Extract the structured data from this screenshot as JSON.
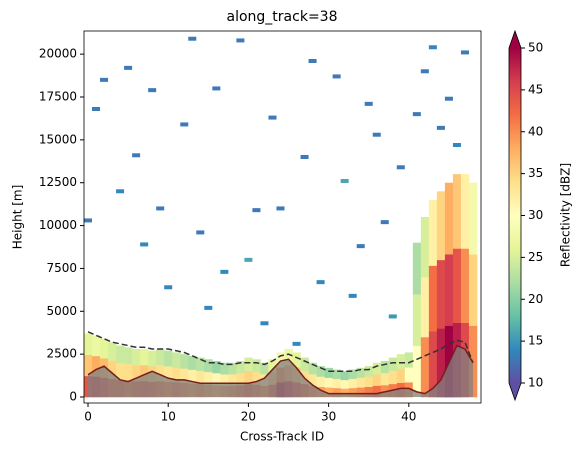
{
  "chart_data": {
    "type": "heatmap",
    "title": "along_track=38",
    "x_label": "Cross-Track ID",
    "y_label": "Height [m]",
    "colorbar_label": "Reflectivity [dBZ]",
    "xlim": [
      -0.5,
      49
    ],
    "ylim": [
      -350,
      21350
    ],
    "xticks": [
      0,
      10,
      20,
      30,
      40
    ],
    "yticks": [
      0,
      2500,
      5000,
      7500,
      10000,
      12500,
      15000,
      17500,
      20000
    ],
    "clim": [
      10,
      50
    ],
    "cticks": [
      10,
      15,
      20,
      25,
      30,
      35,
      40,
      45,
      50
    ],
    "colormap": [
      "#5e4fa2",
      "#3288bd",
      "#66c2a5",
      "#abdda4",
      "#e6f598",
      "#ffffbf",
      "#fee08b",
      "#fdae61",
      "#f46d43",
      "#d53e4f",
      "#9e0142"
    ],
    "x": [
      0,
      1,
      2,
      3,
      4,
      5,
      6,
      7,
      8,
      9,
      10,
      11,
      12,
      13,
      14,
      15,
      16,
      17,
      18,
      19,
      20,
      21,
      22,
      23,
      24,
      25,
      26,
      27,
      28,
      29,
      30,
      31,
      32,
      33,
      34,
      35,
      36,
      37,
      38,
      39,
      40,
      41,
      42,
      43,
      44,
      45,
      46,
      47,
      48
    ],
    "column_tops": [
      3700,
      3600,
      3400,
      3200,
      3000,
      2900,
      2800,
      2800,
      2700,
      2800,
      2700,
      2600,
      2500,
      2400,
      2300,
      2200,
      2100,
      2000,
      2000,
      2100,
      2300,
      2200,
      2000,
      2200,
      2600,
      2800,
      2600,
      2300,
      2000,
      1800,
      1700,
      1600,
      1500,
      1600,
      1700,
      1800,
      2000,
      2100,
      2300,
      2500,
      2600,
      9000,
      10500,
      11500,
      12000,
      12500,
      13000,
      13000,
      12500
    ],
    "column_values": [
      [
        44,
        36,
        26
      ],
      [
        45,
        38,
        27
      ],
      [
        44,
        37,
        26
      ],
      [
        42,
        35,
        25
      ],
      [
        42,
        34,
        24
      ],
      [
        41,
        34,
        24
      ],
      [
        42,
        35,
        25
      ],
      [
        43,
        36,
        26
      ],
      [
        42,
        35,
        25
      ],
      [
        41,
        34,
        24
      ],
      [
        40,
        33,
        23
      ],
      [
        41,
        34,
        24
      ],
      [
        40,
        33,
        23
      ],
      [
        39,
        32,
        22
      ],
      [
        40,
        33,
        23
      ],
      [
        39,
        32,
        22
      ],
      [
        38,
        31,
        21
      ],
      [
        39,
        32,
        22
      ],
      [
        40,
        33,
        23
      ],
      [
        41,
        34,
        24
      ],
      [
        42,
        35,
        25
      ],
      [
        41,
        34,
        24
      ],
      [
        40,
        33,
        23
      ],
      [
        43,
        36,
        26
      ],
      [
        48,
        40,
        28
      ],
      [
        46,
        38,
        27
      ],
      [
        44,
        36,
        26
      ],
      [
        42,
        34,
        24
      ],
      [
        40,
        33,
        23
      ],
      [
        39,
        32,
        22
      ],
      [
        38,
        31,
        21
      ],
      [
        39,
        32,
        22
      ],
      [
        38,
        31,
        21
      ],
      [
        39,
        32,
        22
      ],
      [
        40,
        33,
        23
      ],
      [
        41,
        34,
        24
      ],
      [
        42,
        35,
        25
      ],
      [
        40,
        33,
        23
      ],
      [
        41,
        34,
        24
      ],
      [
        42,
        35,
        25
      ],
      [
        40,
        30,
        24
      ],
      [
        30,
        25,
        22
      ],
      [
        40,
        32,
        25
      ],
      [
        45,
        42,
        32
      ],
      [
        48,
        45,
        35
      ],
      [
        50,
        46,
        38
      ],
      [
        48,
        44,
        36
      ],
      [
        45,
        40,
        32
      ],
      [
        40,
        35,
        28
      ]
    ],
    "speckles": [
      [
        0,
        10300,
        13
      ],
      [
        1,
        16800,
        13
      ],
      [
        2,
        18500,
        13
      ],
      [
        4,
        12000,
        14
      ],
      [
        5,
        19200,
        13
      ],
      [
        6,
        14100,
        13
      ],
      [
        7,
        8900,
        14
      ],
      [
        8,
        17900,
        13
      ],
      [
        9,
        11000,
        13
      ],
      [
        10,
        6400,
        14
      ],
      [
        12,
        15900,
        13
      ],
      [
        13,
        20900,
        13
      ],
      [
        14,
        9600,
        13
      ],
      [
        15,
        5200,
        14
      ],
      [
        16,
        18000,
        13
      ],
      [
        17,
        7300,
        14
      ],
      [
        19,
        20800,
        13
      ],
      [
        20,
        8000,
        16
      ],
      [
        21,
        10900,
        13
      ],
      [
        22,
        4300,
        14
      ],
      [
        23,
        16300,
        13
      ],
      [
        24,
        11000,
        13
      ],
      [
        26,
        3100,
        14
      ],
      [
        27,
        14000,
        13
      ],
      [
        28,
        19600,
        13
      ],
      [
        29,
        6700,
        14
      ],
      [
        31,
        18700,
        13
      ],
      [
        32,
        12600,
        16
      ],
      [
        33,
        5900,
        14
      ],
      [
        34,
        8800,
        13
      ],
      [
        35,
        17100,
        13
      ],
      [
        36,
        15300,
        13
      ],
      [
        37,
        10200,
        13
      ],
      [
        38,
        4700,
        15
      ],
      [
        39,
        13400,
        13
      ],
      [
        41,
        16500,
        13
      ],
      [
        42,
        19000,
        13
      ],
      [
        43,
        20400,
        14
      ],
      [
        44,
        15700,
        13
      ],
      [
        45,
        17400,
        13
      ],
      [
        46,
        14700,
        14
      ],
      [
        47,
        20100,
        13
      ]
    ],
    "series": [
      {
        "color": "#333333",
        "style": "dashed",
        "values": [
          3800,
          3600,
          3400,
          3200,
          3100,
          3000,
          2900,
          2900,
          2800,
          2800,
          2800,
          2700,
          2600,
          2400,
          2200,
          2000,
          2000,
          1900,
          1900,
          2000,
          2000,
          2000,
          1900,
          2100,
          2400,
          2500,
          2300,
          2100,
          1900,
          1700,
          1500,
          1500,
          1500,
          1500,
          1600,
          1600,
          1800,
          1900,
          2000,
          2000,
          2000,
          2200,
          2400,
          2600,
          2800,
          3100,
          3300,
          3200,
          2000
        ]
      },
      {
        "color": "#7a1d1d",
        "fill": "#808080",
        "values": [
          1300,
          1600,
          1800,
          1400,
          1000,
          900,
          1100,
          1300,
          1500,
          1300,
          1100,
          1000,
          1000,
          900,
          800,
          800,
          800,
          800,
          800,
          800,
          800,
          900,
          1100,
          1600,
          2100,
          2200,
          1700,
          1100,
          700,
          400,
          200,
          200,
          200,
          200,
          200,
          200,
          200,
          300,
          400,
          500,
          500,
          300,
          200,
          500,
          1000,
          2000,
          3000,
          2800,
          2000
        ]
      }
    ]
  }
}
